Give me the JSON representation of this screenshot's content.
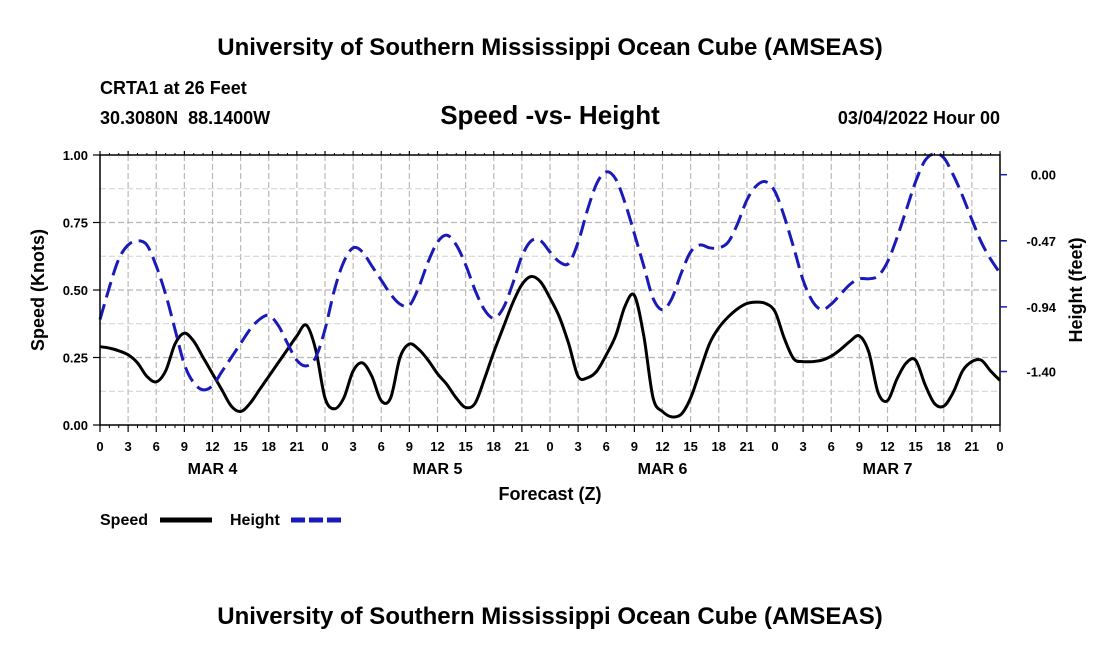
{
  "header": {
    "title": "University of Southern Mississippi Ocean Cube (AMSEAS)",
    "station": "CRTA1 at 26 Feet",
    "coords": "30.3080N  88.1400W",
    "date": "03/04/2022 Hour 00"
  },
  "footer": {
    "title": "University of Southern Mississippi Ocean Cube (AMSEAS)"
  },
  "chart_data": {
    "type": "line",
    "title": "Speed -vs- Height",
    "xlabel": "Forecast (Z)",
    "ylabel_left": "Speed (Knots)",
    "ylabel_right": "Height (feet)",
    "x_range_hours": [
      0,
      96
    ],
    "x_ticks": [
      {
        "h": 0,
        "label": "0"
      },
      {
        "h": 3,
        "label": "3"
      },
      {
        "h": 6,
        "label": "6"
      },
      {
        "h": 9,
        "label": "9"
      },
      {
        "h": 12,
        "label": "12"
      },
      {
        "h": 15,
        "label": "15"
      },
      {
        "h": 18,
        "label": "18"
      },
      {
        "h": 21,
        "label": "21"
      },
      {
        "h": 24,
        "label": "0"
      },
      {
        "h": 27,
        "label": "3"
      },
      {
        "h": 30,
        "label": "6"
      },
      {
        "h": 33,
        "label": "9"
      },
      {
        "h": 36,
        "label": "12"
      },
      {
        "h": 39,
        "label": "15"
      },
      {
        "h": 42,
        "label": "18"
      },
      {
        "h": 45,
        "label": "21"
      },
      {
        "h": 48,
        "label": "0"
      },
      {
        "h": 51,
        "label": "3"
      },
      {
        "h": 54,
        "label": "6"
      },
      {
        "h": 57,
        "label": "9"
      },
      {
        "h": 60,
        "label": "12"
      },
      {
        "h": 63,
        "label": "15"
      },
      {
        "h": 66,
        "label": "18"
      },
      {
        "h": 69,
        "label": "21"
      },
      {
        "h": 72,
        "label": "0"
      },
      {
        "h": 75,
        "label": "3"
      },
      {
        "h": 78,
        "label": "6"
      },
      {
        "h": 81,
        "label": "9"
      },
      {
        "h": 84,
        "label": "12"
      },
      {
        "h": 87,
        "label": "15"
      },
      {
        "h": 90,
        "label": "18"
      },
      {
        "h": 93,
        "label": "21"
      },
      {
        "h": 96,
        "label": "0"
      }
    ],
    "day_labels": [
      {
        "h": 12,
        "label": "MAR 4"
      },
      {
        "h": 36,
        "label": "MAR 5"
      },
      {
        "h": 60,
        "label": "MAR 6"
      },
      {
        "h": 84,
        "label": "MAR 7"
      }
    ],
    "y_left": {
      "range": [
        0,
        1.0
      ],
      "ticks": [
        "0.00",
        "0.25",
        "0.50",
        "0.75",
        "1.00"
      ],
      "tick_values": [
        0,
        0.25,
        0.5,
        0.75,
        1.0
      ]
    },
    "y_right": {
      "range": [
        -1.78,
        0.14
      ],
      "ticks": [
        "0.00",
        "-0.47",
        "-0.94",
        "-1.40"
      ],
      "tick_values": [
        0.0,
        -0.47,
        -0.94,
        -1.4
      ]
    },
    "grid": true,
    "series": [
      {
        "name": "Speed",
        "axis": "left",
        "color": "#000000",
        "dash": "solid",
        "points": [
          [
            0,
            0.29
          ],
          [
            1,
            0.285
          ],
          [
            2,
            0.275
          ],
          [
            3,
            0.26
          ],
          [
            4,
            0.23
          ],
          [
            5,
            0.18
          ],
          [
            6,
            0.16
          ],
          [
            7,
            0.2
          ],
          [
            8,
            0.3
          ],
          [
            9,
            0.34
          ],
          [
            10,
            0.31
          ],
          [
            11,
            0.25
          ],
          [
            12,
            0.19
          ],
          [
            13,
            0.13
          ],
          [
            14,
            0.07
          ],
          [
            15,
            0.05
          ],
          [
            16,
            0.08
          ],
          [
            17,
            0.13
          ],
          [
            18,
            0.18
          ],
          [
            19,
            0.23
          ],
          [
            20,
            0.28
          ],
          [
            21,
            0.33
          ],
          [
            22,
            0.37
          ],
          [
            23,
            0.28
          ],
          [
            24,
            0.1
          ],
          [
            25,
            0.06
          ],
          [
            26,
            0.1
          ],
          [
            27,
            0.2
          ],
          [
            28,
            0.23
          ],
          [
            29,
            0.18
          ],
          [
            30,
            0.09
          ],
          [
            31,
            0.1
          ],
          [
            32,
            0.25
          ],
          [
            33,
            0.3
          ],
          [
            34,
            0.28
          ],
          [
            35,
            0.24
          ],
          [
            36,
            0.19
          ],
          [
            37,
            0.15
          ],
          [
            38,
            0.1
          ],
          [
            39,
            0.065
          ],
          [
            40,
            0.08
          ],
          [
            41,
            0.17
          ],
          [
            42,
            0.27
          ],
          [
            43,
            0.36
          ],
          [
            44,
            0.45
          ],
          [
            45,
            0.52
          ],
          [
            46,
            0.55
          ],
          [
            47,
            0.53
          ],
          [
            48,
            0.47
          ],
          [
            49,
            0.4
          ],
          [
            50,
            0.3
          ],
          [
            51,
            0.18
          ],
          [
            52,
            0.175
          ],
          [
            53,
            0.2
          ],
          [
            54,
            0.26
          ],
          [
            55,
            0.33
          ],
          [
            56,
            0.44
          ],
          [
            57,
            0.48
          ],
          [
            58,
            0.33
          ],
          [
            59,
            0.1
          ],
          [
            60,
            0.05
          ],
          [
            61,
            0.03
          ],
          [
            62,
            0.04
          ],
          [
            63,
            0.1
          ],
          [
            64,
            0.2
          ],
          [
            65,
            0.3
          ],
          [
            66,
            0.36
          ],
          [
            67,
            0.4
          ],
          [
            68,
            0.43
          ],
          [
            69,
            0.45
          ],
          [
            70,
            0.455
          ],
          [
            71,
            0.45
          ],
          [
            72,
            0.42
          ],
          [
            73,
            0.32
          ],
          [
            74,
            0.245
          ],
          [
            75,
            0.235
          ],
          [
            76,
            0.235
          ],
          [
            77,
            0.24
          ],
          [
            78,
            0.255
          ],
          [
            79,
            0.28
          ],
          [
            80,
            0.31
          ],
          [
            81,
            0.33
          ],
          [
            82,
            0.27
          ],
          [
            83,
            0.12
          ],
          [
            84,
            0.09
          ],
          [
            85,
            0.17
          ],
          [
            86,
            0.23
          ],
          [
            87,
            0.24
          ],
          [
            88,
            0.15
          ],
          [
            89,
            0.08
          ],
          [
            90,
            0.07
          ],
          [
            91,
            0.12
          ],
          [
            92,
            0.2
          ],
          [
            93,
            0.235
          ],
          [
            94,
            0.24
          ],
          [
            95,
            0.2
          ],
          [
            96,
            0.165
          ]
        ]
      },
      {
        "name": "Height",
        "axis": "right",
        "color": "#1a1ab8",
        "dash": "dashed",
        "points": [
          [
            0,
            -1.03
          ],
          [
            1,
            -0.8
          ],
          [
            2,
            -0.6
          ],
          [
            3,
            -0.5
          ],
          [
            4,
            -0.47
          ],
          [
            5,
            -0.5
          ],
          [
            6,
            -0.65
          ],
          [
            7,
            -0.85
          ],
          [
            8,
            -1.1
          ],
          [
            9,
            -1.35
          ],
          [
            10,
            -1.48
          ],
          [
            11,
            -1.53
          ],
          [
            12,
            -1.5
          ],
          [
            13,
            -1.4
          ],
          [
            14,
            -1.3
          ],
          [
            15,
            -1.2
          ],
          [
            16,
            -1.1
          ],
          [
            17,
            -1.03
          ],
          [
            18,
            -1.0
          ],
          [
            19,
            -1.07
          ],
          [
            20,
            -1.2
          ],
          [
            21,
            -1.32
          ],
          [
            22,
            -1.36
          ],
          [
            23,
            -1.3
          ],
          [
            24,
            -1.1
          ],
          [
            25,
            -0.82
          ],
          [
            26,
            -0.62
          ],
          [
            27,
            -0.52
          ],
          [
            28,
            -0.55
          ],
          [
            29,
            -0.65
          ],
          [
            30,
            -0.75
          ],
          [
            31,
            -0.85
          ],
          [
            32,
            -0.92
          ],
          [
            33,
            -0.93
          ],
          [
            34,
            -0.8
          ],
          [
            35,
            -0.62
          ],
          [
            36,
            -0.48
          ],
          [
            37,
            -0.43
          ],
          [
            38,
            -0.5
          ],
          [
            39,
            -0.64
          ],
          [
            40,
            -0.82
          ],
          [
            41,
            -0.96
          ],
          [
            42,
            -1.02
          ],
          [
            43,
            -0.95
          ],
          [
            44,
            -0.78
          ],
          [
            45,
            -0.58
          ],
          [
            46,
            -0.47
          ],
          [
            47,
            -0.47
          ],
          [
            48,
            -0.55
          ],
          [
            49,
            -0.62
          ],
          [
            50,
            -0.63
          ],
          [
            51,
            -0.48
          ],
          [
            52,
            -0.25
          ],
          [
            53,
            -0.06
          ],
          [
            54,
            0.02
          ],
          [
            55,
            -0.03
          ],
          [
            56,
            -0.2
          ],
          [
            57,
            -0.42
          ],
          [
            58,
            -0.65
          ],
          [
            59,
            -0.88
          ],
          [
            60,
            -0.96
          ],
          [
            61,
            -0.88
          ],
          [
            62,
            -0.7
          ],
          [
            63,
            -0.55
          ],
          [
            64,
            -0.5
          ],
          [
            65,
            -0.52
          ],
          [
            66,
            -0.52
          ],
          [
            67,
            -0.48
          ],
          [
            68,
            -0.35
          ],
          [
            69,
            -0.18
          ],
          [
            70,
            -0.08
          ],
          [
            71,
            -0.05
          ],
          [
            72,
            -0.12
          ],
          [
            73,
            -0.3
          ],
          [
            74,
            -0.52
          ],
          [
            75,
            -0.75
          ],
          [
            76,
            -0.9
          ],
          [
            77,
            -0.96
          ],
          [
            78,
            -0.92
          ],
          [
            79,
            -0.85
          ],
          [
            80,
            -0.78
          ],
          [
            81,
            -0.74
          ],
          [
            82,
            -0.74
          ],
          [
            83,
            -0.72
          ],
          [
            84,
            -0.62
          ],
          [
            85,
            -0.45
          ],
          [
            86,
            -0.25
          ],
          [
            87,
            -0.05
          ],
          [
            88,
            0.1
          ],
          [
            89,
            0.15
          ],
          [
            90,
            0.12
          ],
          [
            91,
            0.0
          ],
          [
            92,
            -0.15
          ],
          [
            93,
            -0.32
          ],
          [
            94,
            -0.48
          ],
          [
            95,
            -0.6
          ],
          [
            96,
            -0.7
          ]
        ]
      }
    ],
    "legend": {
      "placement": "bottom-left",
      "items": [
        {
          "label": "Speed",
          "color": "#000000",
          "dash": "solid"
        },
        {
          "label": "Height",
          "color": "#1a1ab8",
          "dash": "dashed"
        }
      ]
    }
  }
}
